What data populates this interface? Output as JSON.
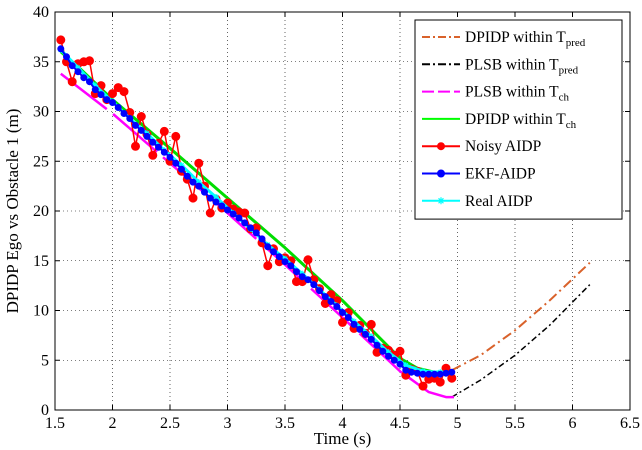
{
  "chart_data": {
    "type": "line",
    "title": "",
    "xlabel": "Time (s)",
    "ylabel": "DPIDP Ego vs Obstacle 1 (m)",
    "xlim": [
      1.5,
      6.5
    ],
    "ylim": [
      0,
      40
    ],
    "xticks": [
      1.5,
      2,
      2.5,
      3,
      3.5,
      4,
      4.5,
      5,
      5.5,
      6,
      6.5
    ],
    "yticks": [
      0,
      5,
      10,
      15,
      20,
      25,
      30,
      35,
      40
    ],
    "xtick_labels": [
      "1.5",
      "2",
      "2.5",
      "3",
      "3.5",
      "4",
      "4.5",
      "5",
      "5.5",
      "6",
      "6.5"
    ],
    "ytick_labels": [
      "0",
      "5",
      "10",
      "15",
      "20",
      "25",
      "30",
      "35",
      "40"
    ],
    "grid": true,
    "legend_position": "top-right",
    "legend": [
      {
        "label": "DPIDP within T",
        "sub": "pred",
        "color": "#d9622b",
        "style": "dashdot",
        "marker": "none"
      },
      {
        "label": "PLSB within T",
        "sub": "pred",
        "color": "#000000",
        "style": "dashdot",
        "marker": "none"
      },
      {
        "label": "PLSB within T",
        "sub": "ch",
        "color": "#ff00ff",
        "style": "dashed",
        "marker": "none"
      },
      {
        "label": "DPIDP within T",
        "sub": "ch",
        "color": "#00ff00",
        "style": "solid",
        "marker": "none"
      },
      {
        "label": "Noisy AIDP",
        "sub": "",
        "color": "#ff0000",
        "style": "solid",
        "marker": "circle"
      },
      {
        "label": "EKF-AIDP",
        "sub": "",
        "color": "#0000ff",
        "style": "solid",
        "marker": "circle"
      },
      {
        "label": "Real AIDP",
        "sub": "",
        "color": "#00ffff",
        "style": "solid",
        "marker": "star"
      }
    ],
    "series": [
      {
        "id": "dpidp_pred",
        "color": "#d9622b",
        "dash": "10,4,2,4",
        "width": 2,
        "x": [
          4.95,
          5.2,
          5.5,
          5.8,
          6.15
        ],
        "y": [
          4.0,
          5.5,
          8.0,
          11.0,
          14.8
        ]
      },
      {
        "id": "plsb_pred",
        "color": "#000000",
        "dash": "6,3,2,3",
        "width": 1.5,
        "x": [
          4.95,
          5.2,
          5.5,
          5.8,
          6.15
        ],
        "y": [
          1.3,
          3.0,
          5.5,
          8.5,
          12.6
        ]
      },
      {
        "id": "plsb_ch",
        "color": "#ff00ff",
        "dash": "58,8",
        "width": 2.5,
        "x": [
          1.55,
          2.0,
          2.5,
          3.0,
          3.5,
          4.0,
          4.5,
          4.75,
          4.9,
          4.97
        ],
        "y": [
          33.8,
          29.8,
          24.8,
          19.8,
          14.6,
          9.3,
          3.9,
          1.8,
          1.3,
          1.3
        ]
      },
      {
        "id": "dpidp_ch",
        "color": "#00dd00",
        "dash": "",
        "width": 3,
        "x": [
          1.55,
          1.7,
          2.0,
          2.5,
          3.0,
          3.5,
          4.0,
          4.5,
          4.65,
          4.8,
          4.95
        ],
        "y": [
          36.0,
          34.5,
          31.2,
          26.3,
          21.3,
          16.3,
          11.0,
          5.2,
          4.2,
          3.8,
          3.9
        ]
      },
      {
        "id": "noisy",
        "color": "#ff0000",
        "dash": "",
        "width": 1.5,
        "marker": "circle",
        "marker_r": 4,
        "x": [
          1.55,
          1.6,
          1.65,
          1.7,
          1.75,
          1.8,
          1.85,
          1.9,
          1.95,
          2.0,
          2.05,
          2.1,
          2.15,
          2.2,
          2.25,
          2.3,
          2.35,
          2.4,
          2.45,
          2.5,
          2.55,
          2.6,
          2.65,
          2.7,
          2.75,
          2.8,
          2.85,
          2.9,
          2.95,
          3.0,
          3.05,
          3.1,
          3.15,
          3.2,
          3.25,
          3.3,
          3.35,
          3.4,
          3.45,
          3.5,
          3.55,
          3.6,
          3.65,
          3.7,
          3.75,
          3.8,
          3.85,
          3.9,
          3.95,
          4.0,
          4.05,
          4.1,
          4.15,
          4.2,
          4.25,
          4.3,
          4.35,
          4.4,
          4.45,
          4.5,
          4.55,
          4.6,
          4.65,
          4.7,
          4.75,
          4.8,
          4.85,
          4.9,
          4.95
        ],
        "y": [
          37.2,
          35.0,
          33.0,
          34.8,
          35.0,
          35.1,
          31.8,
          32.6,
          31.2,
          31.8,
          32.4,
          32.0,
          29.9,
          26.5,
          29.5,
          27.7,
          25.6,
          26.8,
          28.0,
          25.0,
          27.5,
          24.0,
          23.2,
          21.3,
          24.8,
          22.5,
          19.8,
          21.2,
          20.3,
          20.8,
          20.2,
          19.9,
          19.8,
          18.2,
          18.3,
          16.8,
          14.5,
          16.2,
          14.9,
          15.3,
          15.0,
          12.9,
          12.9,
          15.1,
          13.1,
          12.2,
          10.7,
          11.6,
          11.0,
          8.8,
          9.8,
          8.2,
          8.5,
          7.7,
          8.6,
          5.8,
          6.2,
          6.0,
          5.5,
          5.9,
          3.5,
          4.1,
          3.9,
          2.4,
          3.1,
          3.2,
          2.8,
          4.2,
          3.2
        ]
      },
      {
        "id": "real",
        "color": "#00ffff",
        "dash": "",
        "width": 3,
        "marker": "star",
        "marker_r": 3,
        "x": [
          1.55,
          1.7,
          1.85,
          2.0,
          2.15,
          2.3,
          2.45,
          2.6,
          2.75,
          2.9,
          3.05,
          3.2,
          3.35,
          3.5,
          3.65,
          3.8,
          3.95,
          4.1,
          4.25,
          4.4,
          4.55,
          4.7,
          4.85,
          4.95
        ],
        "y": [
          36.2,
          34.4,
          32.6,
          31.0,
          29.3,
          27.8,
          26.1,
          24.6,
          22.9,
          21.4,
          19.8,
          18.2,
          16.6,
          15.2,
          13.7,
          12.1,
          10.5,
          8.9,
          7.4,
          5.8,
          4.5,
          3.9,
          3.8,
          3.8
        ]
      },
      {
        "id": "ekf",
        "color": "#0000ff",
        "dash": "",
        "width": 2,
        "marker": "circle",
        "marker_r": 3,
        "x": [
          1.55,
          1.6,
          1.65,
          1.7,
          1.75,
          1.8,
          1.85,
          1.9,
          1.95,
          2.0,
          2.05,
          2.1,
          2.15,
          2.2,
          2.25,
          2.3,
          2.35,
          2.4,
          2.45,
          2.5,
          2.55,
          2.6,
          2.65,
          2.7,
          2.75,
          2.8,
          2.85,
          2.9,
          2.95,
          3.0,
          3.05,
          3.1,
          3.15,
          3.2,
          3.25,
          3.3,
          3.35,
          3.4,
          3.45,
          3.5,
          3.55,
          3.6,
          3.65,
          3.7,
          3.75,
          3.8,
          3.85,
          3.9,
          3.95,
          4.0,
          4.05,
          4.1,
          4.15,
          4.2,
          4.25,
          4.3,
          4.35,
          4.4,
          4.45,
          4.5,
          4.55,
          4.6,
          4.65,
          4.7,
          4.75,
          4.8,
          4.85,
          4.9,
          4.95
        ],
        "y": [
          36.3,
          35.5,
          34.6,
          34.0,
          33.4,
          33.0,
          32.2,
          31.7,
          31.2,
          30.9,
          30.4,
          29.8,
          29.3,
          28.6,
          28.1,
          27.5,
          26.9,
          26.4,
          25.9,
          25.4,
          24.8,
          24.2,
          23.5,
          22.9,
          22.5,
          21.9,
          21.3,
          20.9,
          20.5,
          20.1,
          19.7,
          19.3,
          18.8,
          18.3,
          17.8,
          17.2,
          16.4,
          15.9,
          15.4,
          14.9,
          14.5,
          13.9,
          13.4,
          13.1,
          12.6,
          12.0,
          11.4,
          10.9,
          10.4,
          9.8,
          9.3,
          8.6,
          8.1,
          7.6,
          7.1,
          6.5,
          5.9,
          5.4,
          5.0,
          4.6,
          4.0,
          3.8,
          3.7,
          3.6,
          3.6,
          3.6,
          3.6,
          3.7,
          3.8
        ]
      }
    ]
  }
}
